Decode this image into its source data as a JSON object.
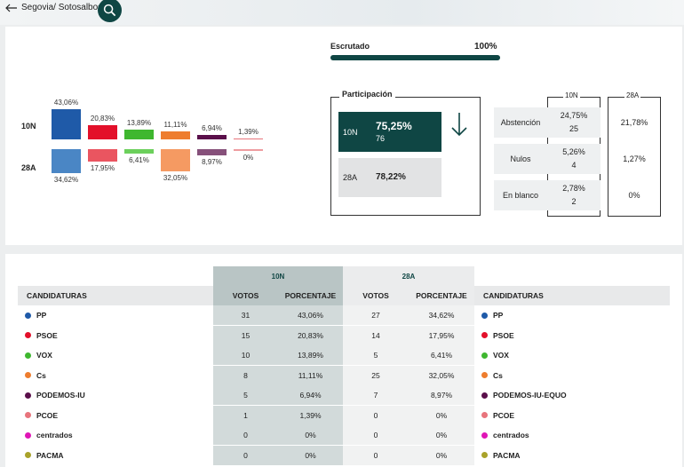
{
  "header": {
    "breadcrumb": "Segovia/ Sotosalbos"
  },
  "colors": {
    "accent": "#0f4644"
  },
  "escrutado": {
    "label": "Escrutado",
    "value": "100%",
    "fraction": 1.0
  },
  "chart_data": {
    "type": "bar",
    "categories": [
      "PP",
      "PSOE",
      "VOX",
      "Cs",
      "PODEMOS-IU",
      "PCOE"
    ],
    "series": [
      {
        "name": "10N",
        "values": [
          43.06,
          20.83,
          13.89,
          11.11,
          6.94,
          1.39
        ],
        "labels": [
          "43,06%",
          "20,83%",
          "13,89%",
          "11,11%",
          "6,94%",
          "1,39%"
        ]
      },
      {
        "name": "28A",
        "values": [
          34.62,
          17.95,
          6.41,
          32.05,
          8.97,
          0
        ],
        "labels": [
          "34,62%",
          "17,95%",
          "6,41%",
          "32,05%",
          "8,97%",
          "0%"
        ]
      }
    ],
    "colors": [
      "#1f5aa8",
      "#e3102a",
      "#3fb72f",
      "#ee7d2e",
      "#5a0f4a",
      "#e8747c"
    ],
    "colors_28a": [
      "#4a86c5",
      "#ea5560",
      "#6cd05c",
      "#f59a62",
      "#86507a",
      "#ee9ca0"
    ]
  },
  "participacion": {
    "title": "Participación",
    "n10": {
      "label": "10N",
      "pct": "75,25%",
      "votes": "76"
    },
    "a28": {
      "label": "28A",
      "pct": "78,22%"
    },
    "arrow_icon": "arrow-down-icon"
  },
  "stats": {
    "col_10n": "10N",
    "col_28a": "28A",
    "rows": [
      {
        "label": "Abstención",
        "pct10": "24,75%",
        "num10": "25",
        "pct28": "21,78%"
      },
      {
        "label": "Nulos",
        "pct10": "5,26%",
        "num10": "4",
        "pct28": "1,27%"
      },
      {
        "label": "En blanco",
        "pct10": "2,78%",
        "num10": "2",
        "pct28": "0%"
      }
    ]
  },
  "table": {
    "head_10n": "10N",
    "head_28a": "28A",
    "cols": {
      "candidaturas": "CANDIDATURAS",
      "votos": "VOTOS",
      "porcentaje": "PORCENTAJE"
    },
    "rows": [
      {
        "name": "PP",
        "color": "#1f5aa8",
        "v10": "31",
        "p10": "43,06%",
        "v28": "27",
        "p28": "34,62%",
        "name28": "PP",
        "color28": "#1f5aa8"
      },
      {
        "name": "PSOE",
        "color": "#e3102a",
        "v10": "15",
        "p10": "20,83%",
        "v28": "14",
        "p28": "17,95%",
        "name28": "PSOE",
        "color28": "#e3102a"
      },
      {
        "name": "VOX",
        "color": "#3fb72f",
        "v10": "10",
        "p10": "13,89%",
        "v28": "5",
        "p28": "6,41%",
        "name28": "VOX",
        "color28": "#3fb72f"
      },
      {
        "name": "Cs",
        "color": "#ee7d2e",
        "v10": "8",
        "p10": "11,11%",
        "v28": "25",
        "p28": "32,05%",
        "name28": "Cs",
        "color28": "#ee7d2e"
      },
      {
        "name": "PODEMOS-IU",
        "color": "#5a0f4a",
        "v10": "5",
        "p10": "6,94%",
        "v28": "7",
        "p28": "8,97%",
        "name28": "PODEMOS-IU-EQUO",
        "color28": "#5a0f4a"
      },
      {
        "name": "PCOE",
        "color": "#e8747c",
        "v10": "1",
        "p10": "1,39%",
        "v28": "0",
        "p28": "0%",
        "name28": "PCOE",
        "color28": "#e8747c"
      },
      {
        "name": "centrados",
        "color": "#e015b6",
        "v10": "0",
        "p10": "0%",
        "v28": "0",
        "p28": "0%",
        "name28": "centrados",
        "color28": "#e015b6"
      },
      {
        "name": "PACMA",
        "color": "#a9a22a",
        "v10": "0",
        "p10": "0%",
        "v28": "0",
        "p28": "0%",
        "name28": "PACMA",
        "color28": "#a9a22a"
      }
    ]
  }
}
